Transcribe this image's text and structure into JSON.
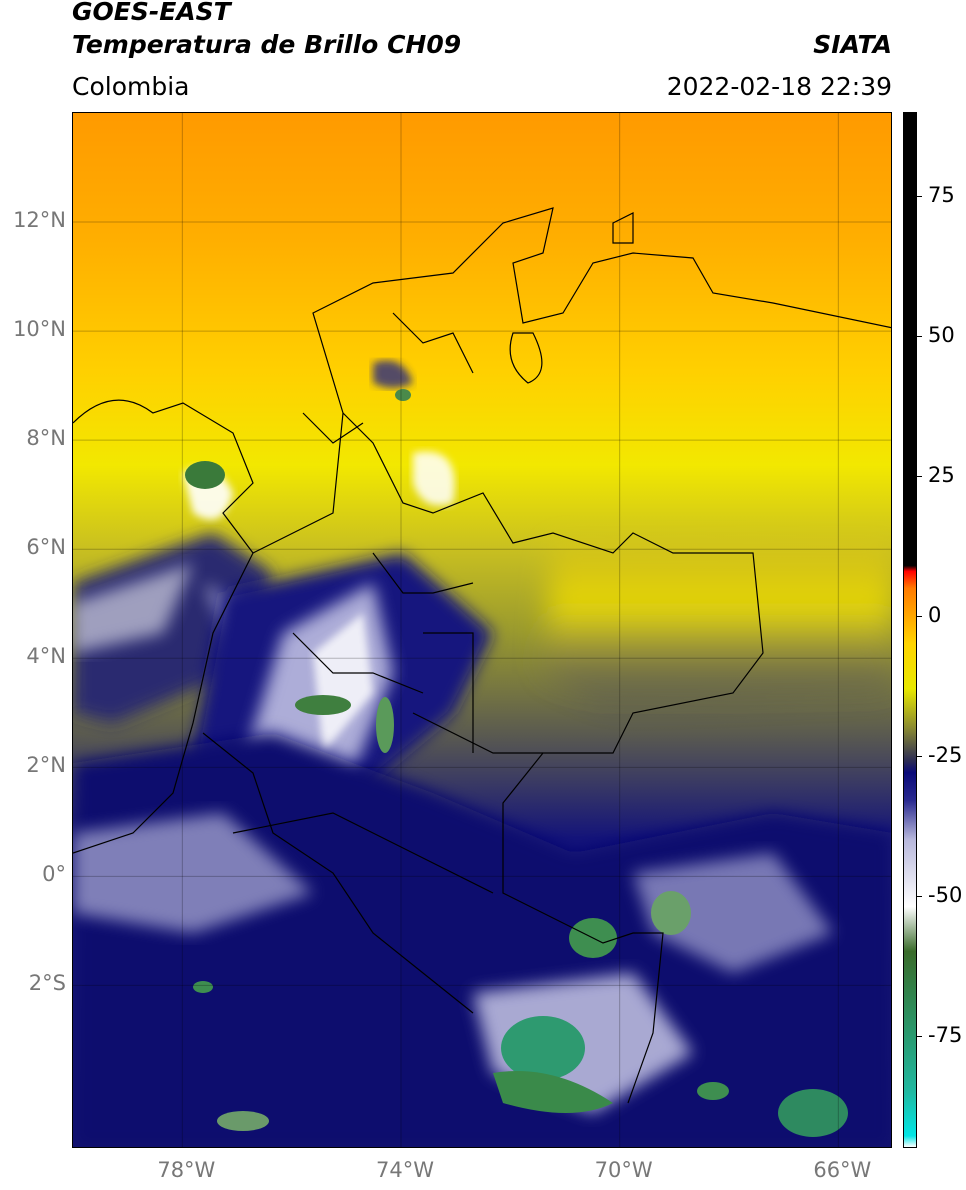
{
  "header": {
    "satellite": "GOES-EAST",
    "product": "Temperatura de Brillo CH09",
    "region": "Colombia",
    "source": "SIATA",
    "datetime": "2022-02-18 22:39"
  },
  "map": {
    "lon_range": [
      -80,
      -65
    ],
    "lat_range": [
      -5,
      14
    ],
    "lat_ticks": [
      "12°N",
      "10°N",
      "8°N",
      "6°N",
      "4°N",
      "2°N",
      "0°",
      "2°S"
    ],
    "lat_values": [
      12,
      10,
      8,
      6,
      4,
      2,
      0,
      -2
    ],
    "lon_ticks": [
      "78°W",
      "74°W",
      "70°W",
      "66°W"
    ],
    "lon_values": [
      -78,
      -74,
      -70,
      -66
    ],
    "grid": true
  },
  "colorbar": {
    "labels": [
      "75",
      "50",
      "25",
      "0",
      "-25",
      "-50",
      "-75"
    ],
    "values": [
      75,
      50,
      25,
      0,
      -25,
      -50,
      -75
    ],
    "range": [
      -95,
      90
    ],
    "stops": [
      {
        "v": -95,
        "c": "#ffffff"
      },
      {
        "v": -93,
        "c": "#00e5e5"
      },
      {
        "v": -85,
        "c": "#20b8a0"
      },
      {
        "v": -70,
        "c": "#2e8b57"
      },
      {
        "v": -60,
        "c": "#3a6b2a"
      },
      {
        "v": -52,
        "c": "#ffffff"
      },
      {
        "v": -40,
        "c": "#b8b8dc"
      },
      {
        "v": -33,
        "c": "#2a2a90"
      },
      {
        "v": -28,
        "c": "#0a0a78"
      },
      {
        "v": -26,
        "c": "#2a2a55"
      },
      {
        "v": -20,
        "c": "#8a8a30"
      },
      {
        "v": -13,
        "c": "#e8e800"
      },
      {
        "v": -5,
        "c": "#ffd400"
      },
      {
        "v": 5,
        "c": "#ff7a00"
      },
      {
        "v": 8,
        "c": "#ff0000"
      },
      {
        "v": 9,
        "c": "#000000"
      },
      {
        "v": 90,
        "c": "#000000"
      }
    ]
  }
}
